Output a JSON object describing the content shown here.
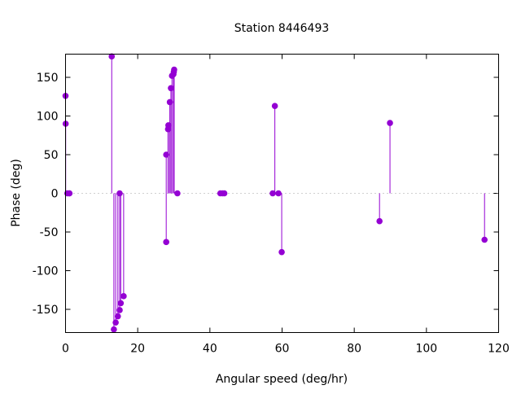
{
  "chart_data": {
    "type": "stem",
    "title": "Station 8446493",
    "xlabel": "Angular speed (deg/hr)",
    "ylabel": "Phase (deg)",
    "xlim": [
      0,
      120
    ],
    "ylim": [
      -180,
      180
    ],
    "xticks": [
      0,
      20,
      40,
      60,
      80,
      100,
      120
    ],
    "yticks": [
      -150,
      -100,
      -50,
      0,
      50,
      100,
      150
    ],
    "grid": false,
    "zero_line": "dotted",
    "color": "#9400d3",
    "points": [
      {
        "x": 0.0,
        "y": 126
      },
      {
        "x": 0.04,
        "y": 90
      },
      {
        "x": 0.5,
        "y": 0
      },
      {
        "x": 1.0,
        "y": 0
      },
      {
        "x": 1.1,
        "y": 0
      },
      {
        "x": 12.8,
        "y": 177
      },
      {
        "x": 13.4,
        "y": -176
      },
      {
        "x": 13.9,
        "y": -167
      },
      {
        "x": 14.5,
        "y": -159
      },
      {
        "x": 15.0,
        "y": -151
      },
      {
        "x": 15.0,
        "y": 0
      },
      {
        "x": 15.3,
        "y": -142
      },
      {
        "x": 16.1,
        "y": -133
      },
      {
        "x": 27.9,
        "y": 50
      },
      {
        "x": 27.9,
        "y": -63
      },
      {
        "x": 28.4,
        "y": 83
      },
      {
        "x": 28.5,
        "y": 88
      },
      {
        "x": 28.9,
        "y": 118
      },
      {
        "x": 29.2,
        "y": 136
      },
      {
        "x": 29.5,
        "y": 152
      },
      {
        "x": 29.9,
        "y": 154
      },
      {
        "x": 30.0,
        "y": 157
      },
      {
        "x": 30.1,
        "y": 160
      },
      {
        "x": 31.0,
        "y": 0
      },
      {
        "x": 42.9,
        "y": 0
      },
      {
        "x": 43.5,
        "y": 0
      },
      {
        "x": 44.0,
        "y": 0
      },
      {
        "x": 57.4,
        "y": 0
      },
      {
        "x": 58.0,
        "y": 113
      },
      {
        "x": 59.0,
        "y": 0
      },
      {
        "x": 59.9,
        "y": -76
      },
      {
        "x": 87.0,
        "y": -36
      },
      {
        "x": 89.9,
        "y": 91
      },
      {
        "x": 116.1,
        "y": -60
      }
    ]
  }
}
